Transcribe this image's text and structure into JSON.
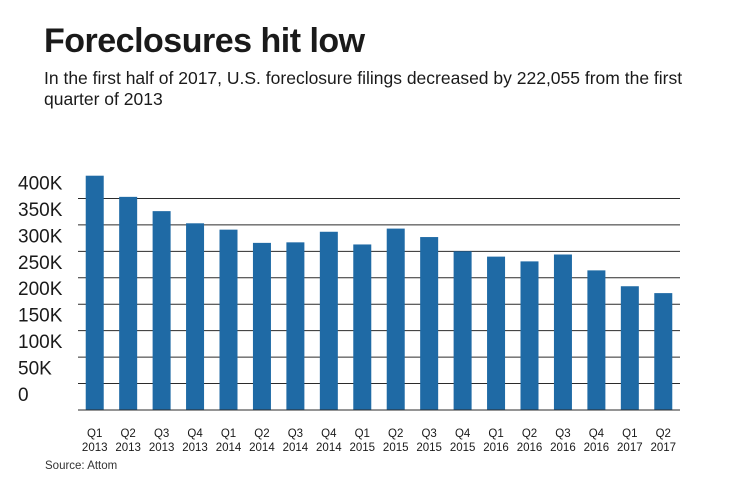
{
  "header": {
    "title": "Foreclosures hit low",
    "subtitle": "In the first half of 2017, U.S. foreclosure filings decreased by 222,055 from the first quarter of 2013"
  },
  "footer": {
    "source": "Source: Attom"
  },
  "colors": {
    "bar": "#1f6aa5",
    "grid": "#2b2b2b",
    "text": "#1a1a1a"
  },
  "chart_data": {
    "type": "bar",
    "title": "Foreclosures hit low",
    "subtitle": "In the first half of 2017, U.S. foreclosure filings decreased by 222,055 from the first quarter of 2013",
    "xlabel": "",
    "ylabel": "",
    "ylim": [
      0,
      450000
    ],
    "grid": true,
    "legend": "none",
    "y_ticks": [
      0,
      50000,
      100000,
      150000,
      200000,
      250000,
      300000,
      350000,
      400000
    ],
    "y_tick_labels": [
      "0",
      "50K",
      "100K",
      "150K",
      "200K",
      "250K",
      "300K",
      "350K",
      "400K"
    ],
    "categories": [
      [
        "Q1",
        "2013"
      ],
      [
        "Q2",
        "2013"
      ],
      [
        "Q3",
        "2013"
      ],
      [
        "Q4",
        "2013"
      ],
      [
        "Q1",
        "2014"
      ],
      [
        "Q2",
        "2014"
      ],
      [
        "Q3",
        "2014"
      ],
      [
        "Q4",
        "2014"
      ],
      [
        "Q1",
        "2015"
      ],
      [
        "Q2",
        "2015"
      ],
      [
        "Q3",
        "2015"
      ],
      [
        "Q4",
        "2015"
      ],
      [
        "Q1",
        "2016"
      ],
      [
        "Q2",
        "2016"
      ],
      [
        "Q3",
        "2016"
      ],
      [
        "Q4",
        "2016"
      ],
      [
        "Q1",
        "2017"
      ],
      [
        "Q2",
        "2017"
      ]
    ],
    "values": [
      443000,
      403000,
      376000,
      353000,
      341000,
      316000,
      317000,
      337000,
      313000,
      343000,
      327000,
      300000,
      290000,
      281000,
      294000,
      264000,
      234000,
      221000
    ]
  }
}
